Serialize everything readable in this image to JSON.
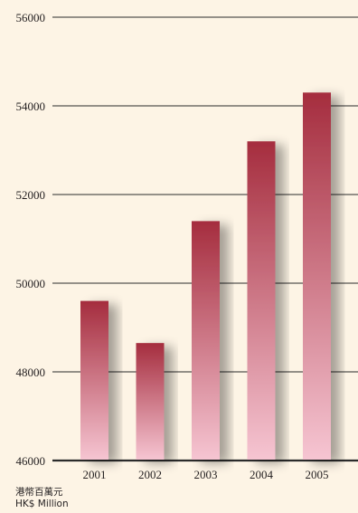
{
  "chart_data": {
    "type": "bar",
    "categories": [
      "2001",
      "2002",
      "2003",
      "2004",
      "2005"
    ],
    "values": [
      49600,
      48650,
      51400,
      53200,
      54300
    ],
    "ylim": [
      46000,
      56000
    ],
    "yticks": [
      "46000",
      "48000",
      "50000",
      "52000",
      "54000",
      "56000"
    ],
    "ytick_values": [
      46000,
      48000,
      50000,
      52000,
      54000,
      56000
    ],
    "unit_zh": "港幣百萬元",
    "unit_en": "HK$ Million",
    "grid": true,
    "colors": {
      "background": "#fdf4e5",
      "bar_top": "#a52d3e",
      "bar_bottom": "#f6c5d2",
      "gridline": "#2b2b2b"
    }
  }
}
